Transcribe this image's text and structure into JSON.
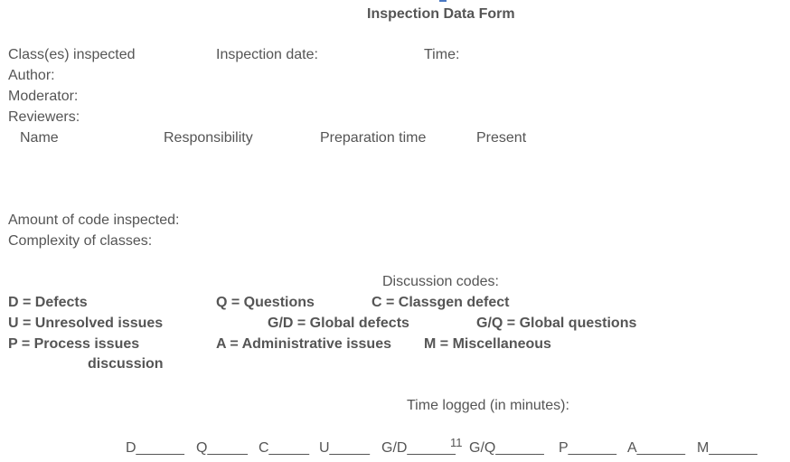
{
  "form": {
    "title": "Inspection Data Form",
    "classes_inspected": "Class(es) inspected",
    "inspection_date": "Inspection date:",
    "time": "Time:",
    "author": "Author:",
    "moderator": "Moderator:",
    "reviewers": "Reviewers:",
    "reviewer_columns": [
      "Name",
      "Responsibility",
      "Preparation time",
      "Present"
    ],
    "amount_of_code": "Amount of code inspected:",
    "complexity": "Complexity of classes:"
  },
  "discussion": {
    "heading": "Discussion codes:",
    "codes": [
      "D = Defects",
      "Q = Questions",
      "C = Classgen defect",
      "U = Unresolved issues",
      "G/D = Global defects",
      "G/Q = Global questions",
      "P = Process issues",
      "A = Administrative issues",
      "M = Miscellaneous",
      "discussion"
    ]
  },
  "time_logged": {
    "heading": "Time logged (in minutes):",
    "fields": [
      "D______",
      "Q_____",
      "C_____",
      "U_____",
      "G/D______",
      "G/Q______",
      "P______",
      "A______",
      "M______"
    ],
    "page_number": "11"
  },
  "colors": {
    "text": "#555555",
    "accent_mark": "#4a78c2"
  }
}
